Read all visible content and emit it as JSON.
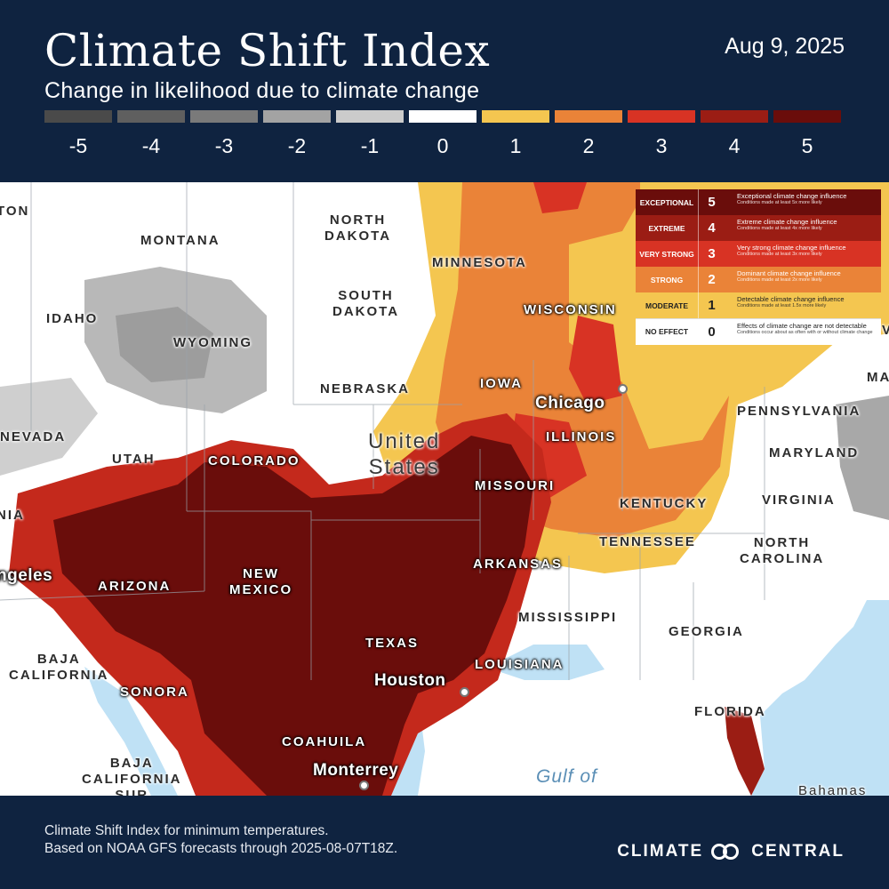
{
  "header": {
    "title": "Climate Shift Index",
    "subtitle": "Change in likelihood due to climate change",
    "date": "Aug 9, 2025"
  },
  "scale": [
    {
      "label": "-5",
      "color": "#4a4a4a"
    },
    {
      "label": "-4",
      "color": "#5f5f5f"
    },
    {
      "label": "-3",
      "color": "#7a7a7a"
    },
    {
      "label": "-2",
      "color": "#a3a3a3"
    },
    {
      "label": "-1",
      "color": "#cbcbcb"
    },
    {
      "label": "0",
      "color": "#ffffff"
    },
    {
      "label": "1",
      "color": "#f4c650"
    },
    {
      "label": "2",
      "color": "#ea8338"
    },
    {
      "label": "3",
      "color": "#d83324"
    },
    {
      "label": "4",
      "color": "#9b1d14"
    },
    {
      "label": "5",
      "color": "#6a0d0b"
    }
  ],
  "legend": [
    {
      "category": "EXCEPTIONAL",
      "level": "5",
      "description": "Exceptional climate change influence",
      "detail": "Conditions made at least 5x more likely",
      "color": "#6a0d0b",
      "text_color": "#ffffff"
    },
    {
      "category": "EXTREME",
      "level": "4",
      "description": "Extreme climate change influence",
      "detail": "Conditions made at least 4x more likely",
      "color": "#9b1d14",
      "text_color": "#ffffff"
    },
    {
      "category": "VERY STRONG",
      "level": "3",
      "description": "Very strong climate change influence",
      "detail": "Conditions made at least 3x more likely",
      "color": "#d83324",
      "text_color": "#ffffff"
    },
    {
      "category": "STRONG",
      "level": "2",
      "description": "Dominant climate change influence",
      "detail": "Conditions made at least 2x more likely",
      "color": "#ea8338",
      "text_color": "#ffffff"
    },
    {
      "category": "MODERATE",
      "level": "1",
      "description": "Detectable climate change influence",
      "detail": "Conditions made at least 1.5x more likely",
      "color": "#f4c650",
      "text_color": "#222222"
    },
    {
      "category": "NO EFFECT",
      "level": "0",
      "description": "Effects of climate change are not detectable",
      "detail": "Conditions occur about as often with or without climate change",
      "color": "#ffffff",
      "text_color": "#222222"
    }
  ],
  "map_labels": {
    "edge_top_left": "TON",
    "north_dakota": "NORTH\nDAKOTA",
    "montana": "MONTANA",
    "minnesota": "MINNESOTA",
    "south_dakota": "SOUTH\nDAKOTA",
    "idaho": "IDAHO",
    "wyoming": "WYOMING",
    "wisconsin": "WISCONSIN",
    "nebraska": "NEBRASKA",
    "iowa": "IOWA",
    "chicago": "Chicago",
    "pennsylvania": "PENNSYLVANIA",
    "nevada": "NEVADA",
    "united_states": "United\nStates",
    "illinois": "ILLINOIS",
    "maryland": "MARYLAND",
    "utah": "UTAH",
    "colorado": "COLORADO",
    "missouri": "MISSOURI",
    "kentucky": "KENTUCKY",
    "virginia": "VIRGINIA",
    "edge_california": "NIA",
    "tennessee": "TENNESSEE",
    "north_carolina": "NORTH\nCAROLINA",
    "los_angeles": "ngeles",
    "new_mexico": "NEW\nMEXICO",
    "arkansas": "ARKANSAS",
    "arizona": "ARIZONA",
    "mississippi": "MISSISSIPPI",
    "georgia": "GEORGIA",
    "texas": "TEXAS",
    "baja_california": "BAJA\nCALIFORNIA",
    "louisiana": "LOUISIANA",
    "houston": "Houston",
    "sonora": "SONORA",
    "florida": "FLORIDA",
    "coahuila": "COAHUILA",
    "baja_california_sur": "BAJA\nCALIFORNIA\nSUR",
    "monterrey": "Monterrey",
    "gulf": "Gulf of",
    "bahamas": "Bahamas",
    "edge_maine": "MA",
    "edge_v": "V"
  },
  "footer": {
    "note_line1": "Climate Shift Index for minimum temperatures.",
    "note_line2": "Based on NOAA GFS forecasts through 2025-08-07T18Z.",
    "brand_left": "CLIMATE",
    "brand_right": "CENTRAL"
  }
}
